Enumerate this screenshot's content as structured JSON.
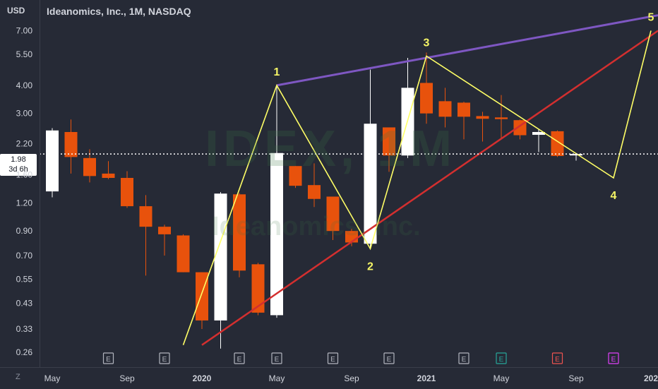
{
  "header": {
    "currency": "USD",
    "title": "Ideanomics, Inc., 1M, NASDAQ"
  },
  "watermark": {
    "ticker": "IDEX, 1M",
    "company": "Ideanomics, Inc."
  },
  "last_price": {
    "value": "1.98",
    "countdown": "3d 6h"
  },
  "time_axis": {
    "timezone_button": "Z"
  },
  "colors": {
    "background": "#262a36",
    "bull_candle": "#ffffff",
    "bear_candle": "#e8520c",
    "wave_line": "#ffff66",
    "upper_channel": "#7e57c2",
    "lower_channel": "#d32f2f",
    "wave_label": "#f5f566"
  },
  "chart_data": {
    "type": "candlestick",
    "title": "Ideanomics, Inc., 1M, NASDAQ",
    "yscale": "log",
    "ylim": [
      0.24,
      8.6
    ],
    "y_ticks": [
      "7.00",
      "5.50",
      "4.00",
      "3.00",
      "2.20",
      "1.60",
      "1.20",
      "0.90",
      "0.70",
      "0.55",
      "0.43",
      "0.33",
      "0.26"
    ],
    "x_labels": [
      {
        "label": "May",
        "date": "2019-05"
      },
      {
        "label": "Sep",
        "date": "2019-09"
      },
      {
        "label": "2020",
        "date": "2020-01"
      },
      {
        "label": "May",
        "date": "2020-05"
      },
      {
        "label": "Sep",
        "date": "2020-09"
      },
      {
        "label": "2021",
        "date": "2021-01"
      },
      {
        "label": "May",
        "date": "2021-05"
      },
      {
        "label": "Sep",
        "date": "2021-09"
      },
      {
        "label": "202",
        "date": "2022-01"
      }
    ],
    "candles": [
      {
        "date": "2019-03",
        "open": 1.55,
        "high": 1.7,
        "low": 1.45,
        "close": 1.6
      },
      {
        "date": "2019-04",
        "open": 1.45,
        "high": 1.62,
        "low": 1.2,
        "close": 1.32
      },
      {
        "date": "2019-05",
        "open": 1.35,
        "high": 2.58,
        "low": 1.27,
        "close": 2.52
      },
      {
        "date": "2019-06",
        "open": 2.48,
        "high": 2.82,
        "low": 1.62,
        "close": 1.92
      },
      {
        "date": "2019-07",
        "open": 1.9,
        "high": 2.08,
        "low": 1.48,
        "close": 1.58
      },
      {
        "date": "2019-08",
        "open": 1.62,
        "high": 1.84,
        "low": 1.53,
        "close": 1.55
      },
      {
        "date": "2019-09",
        "open": 1.55,
        "high": 1.66,
        "low": 1.14,
        "close": 1.16
      },
      {
        "date": "2019-10",
        "open": 1.16,
        "high": 1.3,
        "low": 0.57,
        "close": 0.94
      },
      {
        "date": "2019-11",
        "open": 0.94,
        "high": 0.96,
        "low": 0.7,
        "close": 0.87
      },
      {
        "date": "2019-12",
        "open": 0.86,
        "high": 0.87,
        "low": 0.59,
        "close": 0.59
      },
      {
        "date": "2020-01",
        "open": 0.59,
        "high": 0.59,
        "low": 0.33,
        "close": 0.36
      },
      {
        "date": "2020-02",
        "open": 0.36,
        "high": 1.34,
        "low": 0.27,
        "close": 1.32
      },
      {
        "date": "2020-03",
        "open": 1.31,
        "high": 1.33,
        "low": 0.56,
        "close": 0.6
      },
      {
        "date": "2020-04",
        "open": 0.64,
        "high": 0.65,
        "low": 0.38,
        "close": 0.39
      },
      {
        "date": "2020-05",
        "open": 0.38,
        "high": 3.98,
        "low": 0.37,
        "close": 2.0
      },
      {
        "date": "2020-06",
        "open": 1.75,
        "high": 1.75,
        "low": 1.4,
        "close": 1.43
      },
      {
        "date": "2020-07",
        "open": 1.44,
        "high": 1.8,
        "low": 1.15,
        "close": 1.25
      },
      {
        "date": "2020-08",
        "open": 1.28,
        "high": 1.28,
        "low": 0.82,
        "close": 0.9
      },
      {
        "date": "2020-09",
        "open": 0.9,
        "high": 0.92,
        "low": 0.77,
        "close": 0.8
      },
      {
        "date": "2020-10",
        "open": 0.79,
        "high": 4.7,
        "low": 0.75,
        "close": 2.7
      },
      {
        "date": "2020-11",
        "open": 2.6,
        "high": 2.6,
        "low": 1.65,
        "close": 1.95
      },
      {
        "date": "2020-12",
        "open": 1.95,
        "high": 5.3,
        "low": 1.9,
        "close": 3.9
      },
      {
        "date": "2021-01",
        "open": 4.1,
        "high": 5.6,
        "low": 2.7,
        "close": 3.0
      },
      {
        "date": "2021-02",
        "open": 3.4,
        "high": 3.9,
        "low": 2.6,
        "close": 2.9
      },
      {
        "date": "2021-03",
        "open": 3.35,
        "high": 3.38,
        "low": 2.3,
        "close": 2.9
      },
      {
        "date": "2021-04",
        "open": 2.92,
        "high": 3.05,
        "low": 2.25,
        "close": 2.84
      },
      {
        "date": "2021-05",
        "open": 2.88,
        "high": 3.62,
        "low": 2.3,
        "close": 2.83
      },
      {
        "date": "2021-06",
        "open": 2.8,
        "high": 2.82,
        "low": 2.3,
        "close": 2.4
      },
      {
        "date": "2021-07",
        "open": 2.41,
        "high": 2.55,
        "low": 2.02,
        "close": 2.48
      },
      {
        "date": "2021-08",
        "open": 2.5,
        "high": 2.52,
        "low": 1.92,
        "close": 1.94
      },
      {
        "date": "2021-09",
        "open": 1.96,
        "high": 2.0,
        "low": 1.85,
        "close": 1.98
      }
    ],
    "wave_points": [
      {
        "label": "",
        "date": "2019-12",
        "price": 0.28
      },
      {
        "label": "1",
        "date": "2020-05",
        "price": 4.0
      },
      {
        "label": "2",
        "date": "2020-10",
        "price": 0.75
      },
      {
        "label": "3",
        "date": "2021-01",
        "price": 5.4
      },
      {
        "label": "4",
        "date": "2021-11",
        "price": 1.55
      },
      {
        "label": "5",
        "date": "2022-01",
        "price": 7.0
      }
    ],
    "upper_channel": [
      {
        "date": "2020-05",
        "price": 4.0
      },
      {
        "date": "2022-01",
        "price": 8.2
      }
    ],
    "lower_channel": [
      {
        "date": "2020-01",
        "price": 0.28
      },
      {
        "date": "2022-01",
        "price": 7.0
      }
    ],
    "earnings_markers": [
      {
        "date": "2019-08",
        "label": "E",
        "color": "#b2b5be"
      },
      {
        "date": "2019-11",
        "label": "E",
        "color": "#b2b5be"
      },
      {
        "date": "2020-03",
        "label": "E",
        "color": "#b2b5be"
      },
      {
        "date": "2020-05",
        "label": "E",
        "color": "#b2b5be"
      },
      {
        "date": "2020-08",
        "label": "E",
        "color": "#b2b5be"
      },
      {
        "date": "2020-11",
        "label": "E",
        "color": "#b2b5be"
      },
      {
        "date": "2021-03",
        "label": "E",
        "color": "#b2b5be"
      },
      {
        "date": "2021-05",
        "label": "E",
        "color": "#26a69a"
      },
      {
        "date": "2021-08",
        "label": "E",
        "color": "#ef5350"
      },
      {
        "date": "2021-11",
        "label": "E",
        "color": "#e040fb"
      }
    ]
  }
}
